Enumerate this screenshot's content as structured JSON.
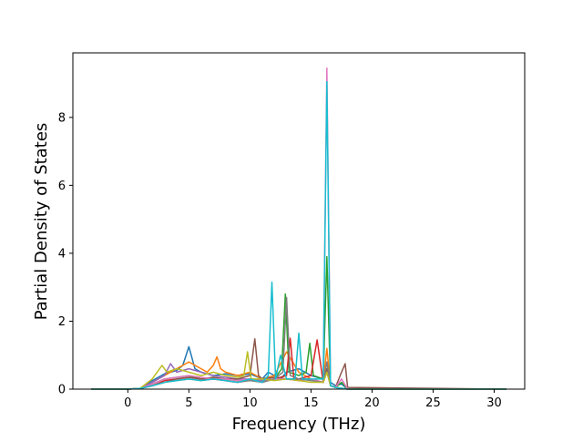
{
  "chart_data": {
    "type": "line",
    "title": "",
    "xlabel": "Frequency (THz)",
    "ylabel": "Partial Density of States",
    "xlim": [
      -4.5,
      32.5
    ],
    "ylim": [
      0,
      9.9
    ],
    "xticks": [
      "0",
      "5",
      "10",
      "15",
      "20",
      "25",
      "30"
    ],
    "xtick_values": [
      0,
      5,
      10,
      15,
      20,
      25,
      30
    ],
    "yticks": [
      "0",
      "2",
      "4",
      "6",
      "8"
    ],
    "ytick_values": [
      0,
      2,
      4,
      6,
      8
    ],
    "grid": false,
    "legend": "none",
    "series_colors": [
      "#1f77b4",
      "#ff7f0e",
      "#2ca02c",
      "#d62728",
      "#9467bd",
      "#8c564b",
      "#e377c2",
      "#7f7f7f",
      "#bcbd22",
      "#17becf"
    ],
    "series": [
      {
        "x": [
          -3,
          0,
          1,
          2,
          3,
          4,
          4.5,
          5,
          5.5,
          6,
          7,
          8,
          9,
          10,
          11,
          11.5,
          12,
          12.5,
          13,
          14,
          15,
          16,
          16.3,
          16.6,
          17,
          17.5,
          18,
          20,
          31
        ],
        "y": [
          0,
          0,
          0.02,
          0.25,
          0.45,
          0.55,
          0.7,
          1.25,
          0.6,
          0.5,
          0.4,
          0.45,
          0.4,
          0.45,
          0.3,
          0.5,
          0.4,
          0.3,
          0.5,
          0.6,
          0.4,
          0.3,
          0.8,
          0.2,
          0.1,
          0.15,
          0,
          0,
          0
        ]
      },
      {
        "x": [
          -3,
          0,
          1,
          2,
          3,
          4,
          5,
          6,
          6.5,
          7,
          7.3,
          7.6,
          8,
          9,
          10,
          11,
          12,
          13,
          14,
          15,
          16,
          16.3,
          16.6,
          17,
          18,
          31
        ],
        "y": [
          0,
          0,
          0.02,
          0.2,
          0.4,
          0.6,
          0.8,
          0.6,
          0.5,
          0.7,
          0.95,
          0.6,
          0.5,
          0.4,
          0.5,
          0.3,
          0.4,
          1.1,
          0.5,
          0.3,
          0.2,
          1.2,
          0.1,
          0.05,
          0,
          0
        ]
      },
      {
        "x": [
          -3,
          0,
          1,
          2,
          3,
          4,
          5,
          6,
          7,
          8,
          9,
          10,
          11,
          12,
          12.6,
          12.9,
          13.2,
          14,
          14.6,
          14.9,
          15.2,
          16,
          16.3,
          16.6,
          17,
          17.5,
          18,
          31
        ],
        "y": [
          0,
          0,
          0.02,
          0.15,
          0.3,
          0.35,
          0.4,
          0.3,
          0.35,
          0.3,
          0.25,
          0.3,
          0.2,
          0.3,
          0.6,
          2.8,
          0.5,
          0.4,
          0.5,
          1.35,
          0.4,
          0.3,
          3.9,
          0.1,
          0.05,
          0.2,
          0,
          0
        ]
      },
      {
        "x": [
          -3,
          0,
          1,
          2,
          3,
          4,
          5,
          6,
          7,
          8,
          9,
          10,
          11,
          12,
          13,
          13.3,
          13.6,
          14,
          15,
          15.5,
          16,
          16.3,
          16.6,
          17,
          18,
          31
        ],
        "y": [
          0,
          0,
          0.02,
          0.1,
          0.25,
          0.3,
          0.35,
          0.3,
          0.3,
          0.25,
          0.2,
          0.3,
          0.25,
          0.3,
          0.4,
          1.5,
          0.3,
          0.3,
          0.4,
          1.45,
          0.2,
          0.6,
          0.1,
          0.05,
          0,
          0
        ]
      },
      {
        "x": [
          -3,
          0,
          1,
          2,
          3,
          3.5,
          4,
          5,
          6,
          7,
          8,
          9,
          10,
          11,
          12,
          13,
          14,
          15,
          16,
          16.3,
          16.6,
          17,
          18,
          31
        ],
        "y": [
          0,
          0,
          0.02,
          0.2,
          0.4,
          0.75,
          0.5,
          0.6,
          0.5,
          0.4,
          0.35,
          0.3,
          0.3,
          0.25,
          0.3,
          0.3,
          0.25,
          0.3,
          0.2,
          0.5,
          0.1,
          0.05,
          0,
          0
        ]
      },
      {
        "x": [
          -3,
          0,
          1,
          2,
          3,
          4,
          5,
          6,
          7,
          8,
          9,
          10,
          10.4,
          10.7,
          11,
          12,
          13,
          14,
          15,
          16,
          16.3,
          16.6,
          17,
          17.5,
          17.8,
          18,
          31
        ],
        "y": [
          0,
          0,
          0.02,
          0.1,
          0.2,
          0.3,
          0.35,
          0.3,
          0.35,
          0.3,
          0.3,
          0.4,
          1.48,
          0.4,
          0.3,
          0.35,
          0.3,
          0.3,
          0.3,
          0.2,
          0.6,
          0.1,
          0.05,
          0.5,
          0.75,
          0.05,
          0
        ]
      },
      {
        "x": [
          -3,
          0,
          1,
          2,
          3,
          4,
          5,
          6,
          7,
          8,
          9,
          10,
          11,
          12,
          13,
          14,
          15,
          16,
          16.3,
          16.6,
          17,
          17.5,
          18,
          31
        ],
        "y": [
          0,
          0,
          0.02,
          0.15,
          0.3,
          0.35,
          0.4,
          0.35,
          0.3,
          0.3,
          0.25,
          0.3,
          0.2,
          0.3,
          0.3,
          0.25,
          0.3,
          0.2,
          9.45,
          0.1,
          0.05,
          0.3,
          0,
          0
        ]
      },
      {
        "x": [
          -3,
          0,
          1,
          2,
          3,
          4,
          5,
          6,
          7,
          8,
          9,
          10,
          11,
          12,
          12.7,
          13,
          13.3,
          14,
          15,
          16,
          16.3,
          16.6,
          17,
          18,
          31
        ],
        "y": [
          0,
          0,
          0.02,
          0.1,
          0.2,
          0.25,
          0.3,
          0.25,
          0.3,
          0.25,
          0.2,
          0.25,
          0.2,
          0.3,
          0.5,
          2.7,
          0.4,
          0.3,
          0.25,
          0.2,
          0.8,
          0.1,
          0.05,
          0,
          0
        ]
      },
      {
        "x": [
          -3,
          0,
          1,
          2,
          2.8,
          3.2,
          4,
          5,
          6,
          7,
          8,
          9,
          9.5,
          9.8,
          10.1,
          11,
          12,
          13,
          14,
          15,
          16,
          16.3,
          16.6,
          17,
          18,
          31
        ],
        "y": [
          0,
          0,
          0.02,
          0.3,
          0.7,
          0.5,
          0.6,
          0.5,
          0.4,
          0.5,
          0.4,
          0.35,
          0.4,
          1.1,
          0.3,
          0.3,
          0.25,
          0.3,
          0.25,
          0.2,
          0.2,
          0.5,
          0.1,
          0.05,
          0,
          0
        ]
      },
      {
        "x": [
          -3,
          0,
          1,
          2,
          3,
          4,
          5,
          6,
          7,
          8,
          9,
          10,
          11,
          11.5,
          11.8,
          12.1,
          12.5,
          13,
          13.7,
          14,
          14.3,
          15,
          16,
          16.3,
          16.6,
          17,
          18,
          31
        ],
        "y": [
          0,
          0,
          0.02,
          0.1,
          0.2,
          0.25,
          0.3,
          0.25,
          0.3,
          0.25,
          0.2,
          0.3,
          0.2,
          0.4,
          3.15,
          0.3,
          1.0,
          0.3,
          0.3,
          1.65,
          0.3,
          0.3,
          0.3,
          9.05,
          0.1,
          0.05,
          0,
          0
        ]
      }
    ]
  }
}
